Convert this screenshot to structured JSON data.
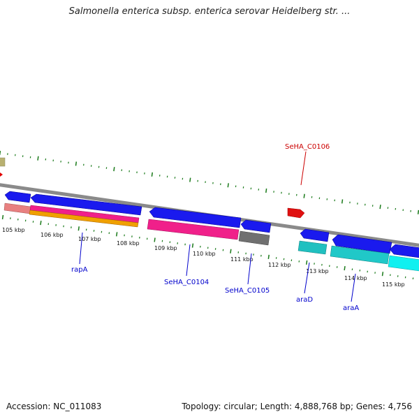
{
  "title": "Salmonella enterica subsp. enterica serovar Heidelberg str. ...",
  "footer": {
    "accession": "Accession: NC_011083",
    "summary": "Topology: circular; Length: 4,888,768 bp; Genes: 4,756"
  },
  "scale_labels": [
    "105 kbp",
    "106 kbp",
    "107 kbp",
    "108 kbp",
    "109 kbp",
    "110 kbp",
    "111 kbp",
    "112 kbp",
    "113 kbp",
    "114 kbp",
    "115 kbp"
  ],
  "gene_labels": {
    "SeHA_C0106": "SeHA_C0106",
    "rapA": "rapA",
    "SeHA_C0104": "SeHA_C0104",
    "SeHA_C0105": "SeHA_C0105",
    "araD": "araD",
    "araA": "araA"
  },
  "colors": {
    "backbone": "#8a8a8a",
    "ticks": "#1a7a1a",
    "forward_strand_label": "#cc0000",
    "reverse_strand_label": "#0000cc"
  }
}
